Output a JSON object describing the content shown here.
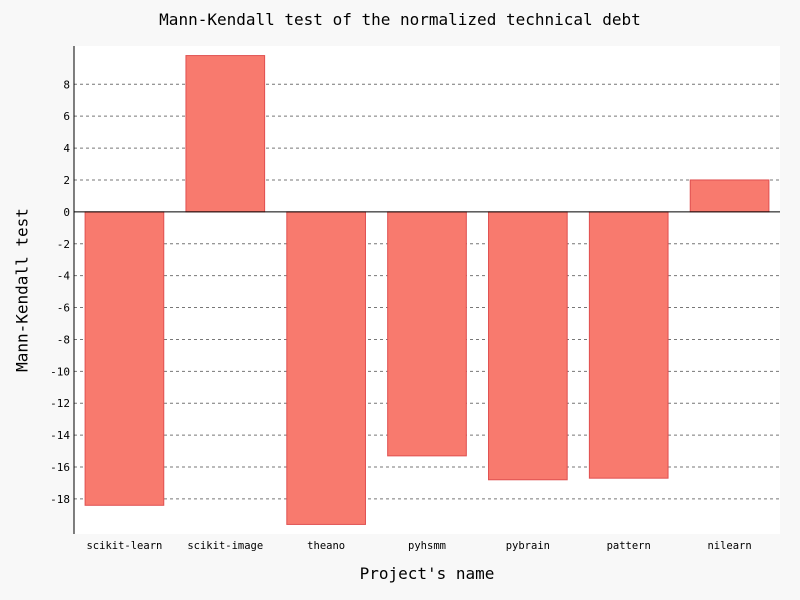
{
  "chart_data": {
    "type": "bar",
    "title": "Mann-Kendall test of the normalized technical debt",
    "xlabel": "Project's name",
    "ylabel": "Mann-Kendall test",
    "categories": [
      "scikit-learn",
      "scikit-image",
      "theano",
      "pyhsmm",
      "pybrain",
      "pattern",
      "nilearn"
    ],
    "values": [
      -18.4,
      9.8,
      -19.6,
      -15.3,
      -16.8,
      -16.7,
      2.0
    ],
    "ylim": [
      -20.2,
      10.4
    ],
    "yticks": [
      8,
      6,
      4,
      2,
      0,
      -2,
      -4,
      -6,
      -8,
      -10,
      -12,
      -14,
      -16,
      -18
    ],
    "grid": true,
    "legend": "none",
    "colors": {
      "bar_fill": "#f87a6e",
      "bar_stroke": "#e05050",
      "grid": "#777777",
      "axis": "#000000",
      "plot_background": "#ffffff",
      "figure_background": "#f8f8f8"
    }
  }
}
